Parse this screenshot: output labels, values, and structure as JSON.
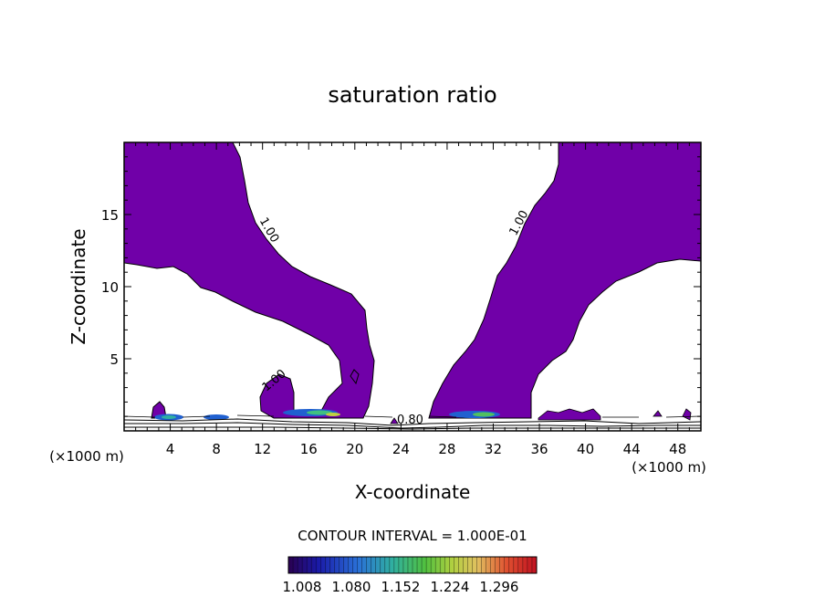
{
  "chart_data": {
    "type": "contour",
    "title": "saturation ratio",
    "xlabel": "X-coordinate",
    "ylabel": "Z-coordinate",
    "x_unit": "(×1000 m)",
    "y_unit": "(×1000 m)",
    "xlim": [
      0,
      50
    ],
    "ylim": [
      0,
      20
    ],
    "x_ticks": [
      4,
      8,
      12,
      16,
      20,
      24,
      28,
      32,
      36,
      40,
      44,
      48
    ],
    "y_ticks": [
      5,
      10,
      15
    ],
    "contour_labels": [
      {
        "text": "1.00",
        "x": 12.3,
        "z": 13.8
      },
      {
        "text": "1.00",
        "x": 34.5,
        "z": 14.3
      },
      {
        "text": "1.00",
        "x": 13.2,
        "z": 3.3
      },
      {
        "text": "0.80",
        "x": 24.8,
        "z": 0.5
      }
    ],
    "filled_regions_note": "saturation ratio >= 1.0 shaded",
    "contour_interval_label": "CONTOUR INTERVAL = 1.000E-01",
    "colorbar": {
      "ticks": [
        "1.008",
        "1.080",
        "1.152",
        "1.224",
        "1.296"
      ],
      "min": 1.008,
      "max": 1.296
    },
    "colors": {
      "fill_main": "#7000a8",
      "line": "#000000"
    }
  }
}
